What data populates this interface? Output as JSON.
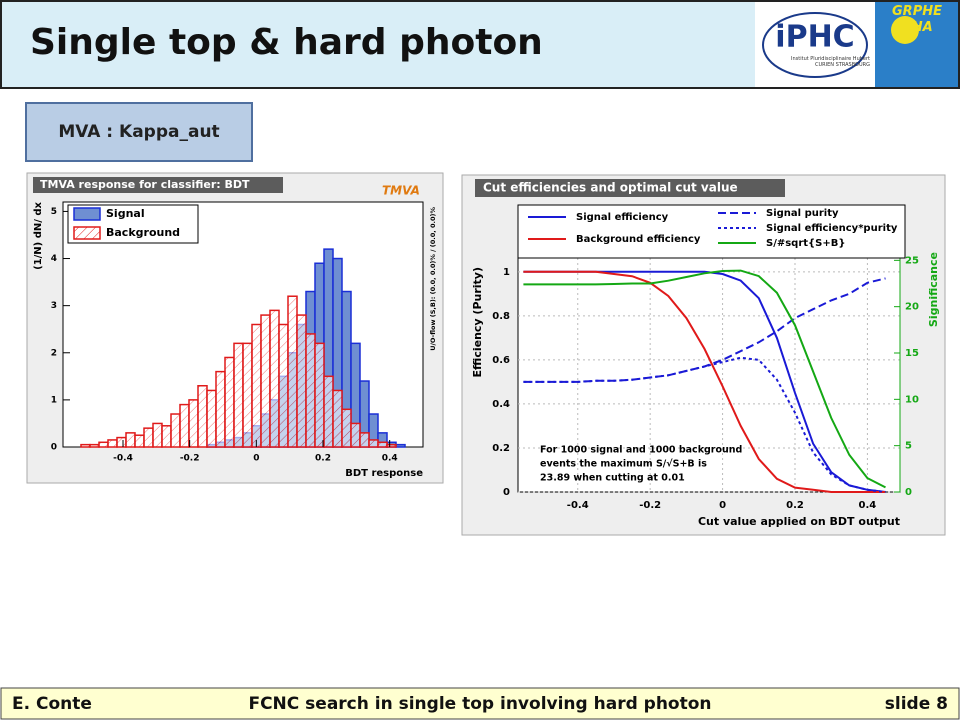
{
  "header": {
    "title": "Single top & hard photon",
    "logo_main": "iPHC",
    "logo_sub": "Institut Pluridisciplinaire Hubert CURIEN STRASBOURG",
    "logo_right": "GRPHE UHA"
  },
  "box_label": "MVA : Kappa_aut",
  "footer": {
    "author": "E. Conte",
    "talk": "FCNC search in single top involving hard photon",
    "slide": "slide 8"
  },
  "chart_data": [
    {
      "type": "histogram",
      "title": "TMVA response for classifier: BDT",
      "logo": "TMVA",
      "x_label": "BDT response",
      "y_label": "(1/N) dN/ dx",
      "note": "U/O-flow (S,B): (0.0, 0.0)% / (0.0, 0.0)%",
      "bins": [
        -0.58,
        -0.553,
        -0.526,
        -0.499,
        -0.472,
        -0.445,
        -0.418,
        -0.391,
        -0.364,
        -0.337,
        -0.31,
        -0.283,
        -0.256,
        -0.229,
        -0.202,
        -0.175,
        -0.148,
        -0.121,
        -0.094,
        -0.067,
        -0.04,
        -0.013,
        0.014,
        0.041,
        0.068,
        0.095,
        0.122,
        0.149,
        0.176,
        0.203,
        0.23,
        0.257,
        0.284,
        0.311,
        0.338,
        0.365,
        0.392,
        0.419,
        0.446,
        0.473,
        0.5
      ],
      "series": [
        {
          "name": "Signal",
          "color": "#1a2fd6",
          "fill": "#6f8fd2",
          "values": [
            0,
            0,
            0,
            0,
            0,
            0,
            0,
            0,
            0,
            0,
            0,
            0,
            0,
            0,
            0,
            0,
            0.05,
            0.1,
            0.15,
            0.2,
            0.3,
            0.45,
            0.7,
            1.0,
            1.5,
            2.0,
            2.6,
            3.3,
            3.9,
            4.2,
            4.0,
            3.3,
            2.2,
            1.4,
            0.7,
            0.3,
            0.1,
            0.05,
            0,
            0
          ]
        },
        {
          "name": "Background",
          "color": "#e01a1a",
          "fill": "hatch",
          "values": [
            0,
            0,
            0.05,
            0.05,
            0.1,
            0.15,
            0.2,
            0.3,
            0.25,
            0.4,
            0.5,
            0.45,
            0.7,
            0.9,
            1.0,
            1.3,
            1.2,
            1.6,
            1.9,
            2.2,
            2.2,
            2.6,
            2.8,
            2.9,
            2.6,
            3.2,
            2.8,
            2.4,
            2.2,
            1.5,
            1.2,
            0.8,
            0.5,
            0.3,
            0.15,
            0.1,
            0.05,
            0,
            0,
            0
          ]
        }
      ],
      "xlim": [
        -0.58,
        0.5
      ],
      "xticks": [
        -0.4,
        -0.2,
        0,
        0.2,
        0.4
      ],
      "ylim": [
        0,
        5.2
      ],
      "yticks": [
        0,
        1,
        2,
        3,
        4,
        5
      ]
    },
    {
      "type": "line",
      "title": "Cut efficiencies and optimal cut value",
      "x_label": "Cut value applied on BDT output",
      "y_label": "Efficiency (Purity)",
      "y2_label": "Significance",
      "annotation": [
        "For 1000 signal and 1000 background",
        "events the maximum S/√S+B is",
        "23.89 when cutting at  0.01"
      ],
      "x": [
        -0.55,
        -0.5,
        -0.45,
        -0.4,
        -0.35,
        -0.3,
        -0.25,
        -0.2,
        -0.15,
        -0.1,
        -0.05,
        0,
        0.05,
        0.1,
        0.15,
        0.2,
        0.25,
        0.3,
        0.35,
        0.4,
        0.45
      ],
      "series": [
        {
          "name": "Signal efficiency",
          "color": "#1a1ad6",
          "dash": "none",
          "values": [
            1,
            1,
            1,
            1,
            1,
            1,
            1,
            1,
            1,
            1,
            1,
            0.99,
            0.96,
            0.88,
            0.7,
            0.45,
            0.22,
            0.09,
            0.03,
            0.01,
            0
          ]
        },
        {
          "name": "Background efficiency",
          "color": "#e01a1a",
          "dash": "none",
          "values": [
            1,
            1,
            1,
            1,
            1,
            0.99,
            0.98,
            0.95,
            0.89,
            0.79,
            0.65,
            0.48,
            0.3,
            0.15,
            0.06,
            0.02,
            0.01,
            0,
            0,
            0,
            0
          ]
        },
        {
          "name": "Signal purity",
          "color": "#1a1ad6",
          "dash": "8 4",
          "values": [
            0.5,
            0.5,
            0.5,
            0.5,
            0.505,
            0.505,
            0.51,
            0.52,
            0.53,
            0.55,
            0.57,
            0.6,
            0.64,
            0.68,
            0.73,
            0.79,
            0.83,
            0.87,
            0.9,
            0.95,
            0.97
          ]
        },
        {
          "name": "Signal efficiency*purity",
          "color": "#1a1ad6",
          "dash": "3 3",
          "values": [
            0.5,
            0.5,
            0.5,
            0.5,
            0.505,
            0.505,
            0.51,
            0.52,
            0.53,
            0.55,
            0.57,
            0.59,
            0.61,
            0.6,
            0.51,
            0.36,
            0.18,
            0.08,
            0.03,
            0.01,
            0
          ]
        },
        {
          "name": "S/#sqrt{S+B}",
          "color": "#14a814",
          "dash": "none",
          "axis": "y2",
          "values": [
            22.4,
            22.4,
            22.4,
            22.4,
            22.4,
            22.45,
            22.5,
            22.5,
            22.8,
            23.2,
            23.6,
            23.85,
            23.89,
            23.3,
            21.5,
            18,
            13,
            8,
            4,
            1.5,
            0.5
          ]
        }
      ],
      "xlim": [
        -0.565,
        0.49
      ],
      "xticks": [
        -0.4,
        -0.2,
        0,
        0.2,
        0.4
      ],
      "ylim": [
        0,
        1.09
      ],
      "yticks": [
        0,
        0.2,
        0.4,
        0.6,
        0.8,
        1
      ],
      "y2lim": [
        0,
        25.9
      ],
      "y2ticks": [
        0,
        5,
        10,
        15,
        20,
        25
      ],
      "grid": true
    }
  ]
}
